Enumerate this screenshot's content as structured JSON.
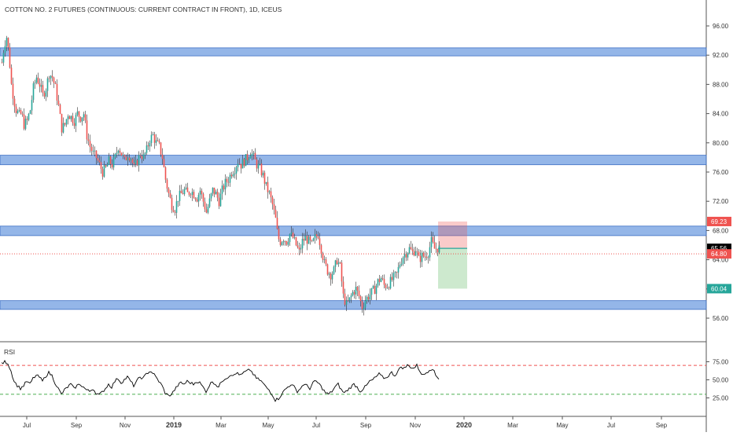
{
  "chart_data": {
    "type": "candlestick",
    "title": "COTTON NO. 2 FUTURES (CONTINUOUS: CURRENT CONTRACT IN FRONT), 1D, ICEUS",
    "price_axis": {
      "ticks": [
        "96.00",
        "92.00",
        "88.00",
        "84.00",
        "80.00",
        "76.00",
        "72.00",
        "68.00",
        "64.00",
        "60.00",
        "56.00"
      ],
      "range": [
        53.5,
        98.5
      ]
    },
    "time_axis": {
      "labels": [
        "Jul",
        "Sep",
        "Nov",
        "2019",
        "Mar",
        "May",
        "Jul",
        "Sep",
        "Nov",
        "2020",
        "Mar",
        "May",
        "Jul",
        "Sep"
      ],
      "bold": [
        "2019",
        "2020"
      ]
    },
    "price_series": [
      {
        "t": 0,
        "p": 91.0
      },
      {
        "t": 3,
        "p": 93.5
      },
      {
        "t": 6,
        "p": 94.5
      },
      {
        "t": 9,
        "p": 92.0
      },
      {
        "t": 12,
        "p": 88.0
      },
      {
        "t": 15,
        "p": 86.0
      },
      {
        "t": 18,
        "p": 84.5
      },
      {
        "t": 22,
        "p": 83.8
      },
      {
        "t": 25,
        "p": 84.0
      },
      {
        "t": 28,
        "p": 82.5
      },
      {
        "t": 32,
        "p": 83.0
      },
      {
        "t": 36,
        "p": 84.5
      },
      {
        "t": 40,
        "p": 87.5
      },
      {
        "t": 44,
        "p": 89.0
      },
      {
        "t": 48,
        "p": 88.0
      },
      {
        "t": 52,
        "p": 86.5
      },
      {
        "t": 56,
        "p": 87.5
      },
      {
        "t": 60,
        "p": 89.5
      },
      {
        "t": 64,
        "p": 89.0
      },
      {
        "t": 68,
        "p": 87.5
      },
      {
        "t": 72,
        "p": 85.0
      },
      {
        "t": 76,
        "p": 82.0
      },
      {
        "t": 80,
        "p": 82.5
      },
      {
        "t": 84,
        "p": 84.0
      },
      {
        "t": 88,
        "p": 83.5
      },
      {
        "t": 92,
        "p": 83.0
      },
      {
        "t": 96,
        "p": 84.0
      },
      {
        "t": 100,
        "p": 83.5
      },
      {
        "t": 104,
        "p": 84.0
      },
      {
        "t": 108,
        "p": 81.0
      },
      {
        "t": 112,
        "p": 79.5
      },
      {
        "t": 116,
        "p": 78.5
      },
      {
        "t": 120,
        "p": 78.0
      },
      {
        "t": 124,
        "p": 77.0
      },
      {
        "t": 128,
        "p": 76.0
      },
      {
        "t": 132,
        "p": 76.5
      },
      {
        "t": 136,
        "p": 77.5
      },
      {
        "t": 140,
        "p": 77.0
      },
      {
        "t": 144,
        "p": 78.0
      },
      {
        "t": 148,
        "p": 79.5
      },
      {
        "t": 152,
        "p": 78.5
      },
      {
        "t": 156,
        "p": 77.5
      },
      {
        "t": 160,
        "p": 78.5
      },
      {
        "t": 164,
        "p": 78.0
      },
      {
        "t": 168,
        "p": 76.5
      },
      {
        "t": 172,
        "p": 77.5
      },
      {
        "t": 176,
        "p": 78.5
      },
      {
        "t": 180,
        "p": 78.0
      },
      {
        "t": 184,
        "p": 79.0
      },
      {
        "t": 188,
        "p": 80.5
      },
      {
        "t": 192,
        "p": 81.0
      },
      {
        "t": 196,
        "p": 80.0
      },
      {
        "t": 200,
        "p": 79.5
      },
      {
        "t": 204,
        "p": 78.0
      },
      {
        "t": 208,
        "p": 75.0
      },
      {
        "t": 212,
        "p": 73.0
      },
      {
        "t": 216,
        "p": 71.5
      },
      {
        "t": 220,
        "p": 71.0
      },
      {
        "t": 224,
        "p": 72.5
      },
      {
        "t": 228,
        "p": 73.0
      },
      {
        "t": 232,
        "p": 73.5
      },
      {
        "t": 236,
        "p": 73.0
      },
      {
        "t": 240,
        "p": 73.5
      },
      {
        "t": 244,
        "p": 73.0
      },
      {
        "t": 248,
        "p": 72.5
      },
      {
        "t": 252,
        "p": 73.5
      },
      {
        "t": 256,
        "p": 72.0
      },
      {
        "t": 260,
        "p": 70.5
      },
      {
        "t": 264,
        "p": 72.0
      },
      {
        "t": 268,
        "p": 73.5
      },
      {
        "t": 272,
        "p": 73.0
      },
      {
        "t": 276,
        "p": 72.0
      },
      {
        "t": 280,
        "p": 73.5
      },
      {
        "t": 284,
        "p": 74.5
      },
      {
        "t": 288,
        "p": 75.0
      },
      {
        "t": 292,
        "p": 76.0
      },
      {
        "t": 296,
        "p": 76.5
      },
      {
        "t": 300,
        "p": 77.5
      },
      {
        "t": 304,
        "p": 77.0
      },
      {
        "t": 308,
        "p": 77.5
      },
      {
        "t": 312,
        "p": 78.0
      },
      {
        "t": 316,
        "p": 78.8
      },
      {
        "t": 320,
        "p": 78.0
      },
      {
        "t": 324,
        "p": 77.0
      },
      {
        "t": 328,
        "p": 76.5
      },
      {
        "t": 332,
        "p": 75.5
      },
      {
        "t": 336,
        "p": 74.0
      },
      {
        "t": 340,
        "p": 73.0
      },
      {
        "t": 344,
        "p": 71.5
      },
      {
        "t": 348,
        "p": 69.5
      },
      {
        "t": 351,
        "p": 67.0
      },
      {
        "t": 354,
        "p": 66.5
      },
      {
        "t": 358,
        "p": 67.0
      },
      {
        "t": 362,
        "p": 66.5
      },
      {
        "t": 366,
        "p": 67.5
      },
      {
        "t": 370,
        "p": 67.0
      },
      {
        "t": 374,
        "p": 66.0
      },
      {
        "t": 378,
        "p": 65.0
      },
      {
        "t": 382,
        "p": 66.5
      },
      {
        "t": 386,
        "p": 67.0
      },
      {
        "t": 390,
        "p": 66.5
      },
      {
        "t": 394,
        "p": 66.0
      },
      {
        "t": 398,
        "p": 67.0
      },
      {
        "t": 402,
        "p": 67.5
      },
      {
        "t": 406,
        "p": 65.5
      },
      {
        "t": 410,
        "p": 63.5
      },
      {
        "t": 414,
        "p": 62.5
      },
      {
        "t": 418,
        "p": 62.0
      },
      {
        "t": 422,
        "p": 62.5
      },
      {
        "t": 426,
        "p": 64.0
      },
      {
        "t": 430,
        "p": 63.0
      },
      {
        "t": 434,
        "p": 59.0
      },
      {
        "t": 438,
        "p": 57.8
      },
      {
        "t": 442,
        "p": 58.5
      },
      {
        "t": 446,
        "p": 59.5
      },
      {
        "t": 450,
        "p": 60.0
      },
      {
        "t": 454,
        "p": 59.0
      },
      {
        "t": 458,
        "p": 57.5
      },
      {
        "t": 462,
        "p": 58.5
      },
      {
        "t": 466,
        "p": 59.0
      },
      {
        "t": 470,
        "p": 59.5
      },
      {
        "t": 474,
        "p": 60.0
      },
      {
        "t": 478,
        "p": 61.0
      },
      {
        "t": 482,
        "p": 61.5
      },
      {
        "t": 486,
        "p": 60.5
      },
      {
        "t": 490,
        "p": 60.5
      },
      {
        "t": 494,
        "p": 61.0
      },
      {
        "t": 498,
        "p": 61.5
      },
      {
        "t": 502,
        "p": 62.0
      },
      {
        "t": 506,
        "p": 63.5
      },
      {
        "t": 510,
        "p": 64.5
      },
      {
        "t": 514,
        "p": 65.0
      },
      {
        "t": 518,
        "p": 65.5
      },
      {
        "t": 522,
        "p": 65.0
      },
      {
        "t": 526,
        "p": 65.5
      },
      {
        "t": 530,
        "p": 64.0
      },
      {
        "t": 534,
        "p": 64.5
      },
      {
        "t": 538,
        "p": 64.5
      },
      {
        "t": 542,
        "p": 65.0
      },
      {
        "t": 546,
        "p": 66.5
      },
      {
        "t": 550,
        "p": 65.5
      },
      {
        "t": 554,
        "p": 65.6
      },
      {
        "t": 557,
        "p": 65.56
      }
    ],
    "rsi_series": [
      {
        "t": 0,
        "v": 72
      },
      {
        "t": 4,
        "v": 75
      },
      {
        "t": 8,
        "v": 73
      },
      {
        "t": 12,
        "v": 62
      },
      {
        "t": 16,
        "v": 48
      },
      {
        "t": 20,
        "v": 42
      },
      {
        "t": 24,
        "v": 38
      },
      {
        "t": 28,
        "v": 42
      },
      {
        "t": 32,
        "v": 48
      },
      {
        "t": 36,
        "v": 44
      },
      {
        "t": 40,
        "v": 52
      },
      {
        "t": 44,
        "v": 56
      },
      {
        "t": 48,
        "v": 54
      },
      {
        "t": 52,
        "v": 48
      },
      {
        "t": 56,
        "v": 55
      },
      {
        "t": 60,
        "v": 60
      },
      {
        "t": 64,
        "v": 56
      },
      {
        "t": 68,
        "v": 46
      },
      {
        "t": 72,
        "v": 38
      },
      {
        "t": 76,
        "v": 30
      },
      {
        "t": 80,
        "v": 36
      },
      {
        "t": 84,
        "v": 40
      },
      {
        "t": 88,
        "v": 44
      },
      {
        "t": 92,
        "v": 38
      },
      {
        "t": 96,
        "v": 42
      },
      {
        "t": 100,
        "v": 44
      },
      {
        "t": 104,
        "v": 40
      },
      {
        "t": 108,
        "v": 36
      },
      {
        "t": 112,
        "v": 34
      },
      {
        "t": 116,
        "v": 38
      },
      {
        "t": 120,
        "v": 32
      },
      {
        "t": 124,
        "v": 29
      },
      {
        "t": 128,
        "v": 33
      },
      {
        "t": 132,
        "v": 38
      },
      {
        "t": 136,
        "v": 44
      },
      {
        "t": 140,
        "v": 40
      },
      {
        "t": 144,
        "v": 48
      },
      {
        "t": 148,
        "v": 52
      },
      {
        "t": 152,
        "v": 46
      },
      {
        "t": 156,
        "v": 50
      },
      {
        "t": 160,
        "v": 54
      },
      {
        "t": 164,
        "v": 48
      },
      {
        "t": 168,
        "v": 42
      },
      {
        "t": 172,
        "v": 48
      },
      {
        "t": 176,
        "v": 54
      },
      {
        "t": 180,
        "v": 52
      },
      {
        "t": 184,
        "v": 58
      },
      {
        "t": 188,
        "v": 62
      },
      {
        "t": 192,
        "v": 60
      },
      {
        "t": 196,
        "v": 54
      },
      {
        "t": 200,
        "v": 48
      },
      {
        "t": 204,
        "v": 42
      },
      {
        "t": 208,
        "v": 32
      },
      {
        "t": 212,
        "v": 28
      },
      {
        "t": 216,
        "v": 30
      },
      {
        "t": 220,
        "v": 36
      },
      {
        "t": 224,
        "v": 42
      },
      {
        "t": 228,
        "v": 46
      },
      {
        "t": 232,
        "v": 44
      },
      {
        "t": 236,
        "v": 48
      },
      {
        "t": 240,
        "v": 46
      },
      {
        "t": 244,
        "v": 44
      },
      {
        "t": 248,
        "v": 48
      },
      {
        "t": 252,
        "v": 46
      },
      {
        "t": 256,
        "v": 40
      },
      {
        "t": 260,
        "v": 34
      },
      {
        "t": 264,
        "v": 42
      },
      {
        "t": 268,
        "v": 48
      },
      {
        "t": 272,
        "v": 44
      },
      {
        "t": 276,
        "v": 40
      },
      {
        "t": 280,
        "v": 48
      },
      {
        "t": 284,
        "v": 52
      },
      {
        "t": 288,
        "v": 54
      },
      {
        "t": 292,
        "v": 58
      },
      {
        "t": 296,
        "v": 56
      },
      {
        "t": 300,
        "v": 60
      },
      {
        "t": 304,
        "v": 56
      },
      {
        "t": 308,
        "v": 60
      },
      {
        "t": 312,
        "v": 62
      },
      {
        "t": 316,
        "v": 64
      },
      {
        "t": 320,
        "v": 58
      },
      {
        "t": 324,
        "v": 52
      },
      {
        "t": 328,
        "v": 50
      },
      {
        "t": 332,
        "v": 46
      },
      {
        "t": 336,
        "v": 40
      },
      {
        "t": 340,
        "v": 36
      },
      {
        "t": 344,
        "v": 30
      },
      {
        "t": 348,
        "v": 22
      },
      {
        "t": 352,
        "v": 24
      },
      {
        "t": 356,
        "v": 30
      },
      {
        "t": 360,
        "v": 36
      },
      {
        "t": 364,
        "v": 40
      },
      {
        "t": 368,
        "v": 44
      },
      {
        "t": 372,
        "v": 40
      },
      {
        "t": 376,
        "v": 34
      },
      {
        "t": 380,
        "v": 38
      },
      {
        "t": 384,
        "v": 44
      },
      {
        "t": 388,
        "v": 42
      },
      {
        "t": 392,
        "v": 38
      },
      {
        "t": 396,
        "v": 46
      },
      {
        "t": 400,
        "v": 48
      },
      {
        "t": 404,
        "v": 44
      },
      {
        "t": 408,
        "v": 38
      },
      {
        "t": 412,
        "v": 32
      },
      {
        "t": 416,
        "v": 30
      },
      {
        "t": 420,
        "v": 34
      },
      {
        "t": 424,
        "v": 40
      },
      {
        "t": 428,
        "v": 44
      },
      {
        "t": 432,
        "v": 36
      },
      {
        "t": 436,
        "v": 32
      },
      {
        "t": 440,
        "v": 36
      },
      {
        "t": 444,
        "v": 40
      },
      {
        "t": 448,
        "v": 44
      },
      {
        "t": 452,
        "v": 40
      },
      {
        "t": 456,
        "v": 34
      },
      {
        "t": 460,
        "v": 38
      },
      {
        "t": 464,
        "v": 42
      },
      {
        "t": 468,
        "v": 48
      },
      {
        "t": 472,
        "v": 50
      },
      {
        "t": 476,
        "v": 54
      },
      {
        "t": 480,
        "v": 58
      },
      {
        "t": 484,
        "v": 54
      },
      {
        "t": 488,
        "v": 52
      },
      {
        "t": 492,
        "v": 56
      },
      {
        "t": 496,
        "v": 60
      },
      {
        "t": 500,
        "v": 56
      },
      {
        "t": 504,
        "v": 62
      },
      {
        "t": 508,
        "v": 68
      },
      {
        "t": 512,
        "v": 66
      },
      {
        "t": 516,
        "v": 70
      },
      {
        "t": 520,
        "v": 68
      },
      {
        "t": 524,
        "v": 66
      },
      {
        "t": 528,
        "v": 70
      },
      {
        "t": 532,
        "v": 62
      },
      {
        "t": 536,
        "v": 56
      },
      {
        "t": 540,
        "v": 60
      },
      {
        "t": 544,
        "v": 64
      },
      {
        "t": 548,
        "v": 66
      },
      {
        "t": 552,
        "v": 56
      },
      {
        "t": 556,
        "v": 52
      }
    ],
    "horizontal_zones": [
      {
        "low": 91.9,
        "high": 93.0
      },
      {
        "low": 77.0,
        "high": 78.3
      },
      {
        "low": 67.3,
        "high": 68.6
      },
      {
        "low": 57.2,
        "high": 58.4
      }
    ],
    "dotted_line": 64.8,
    "position": {
      "entry": 65.56,
      "stop": 69.23,
      "target": 60.04
    },
    "price_labels": [
      {
        "text": "69.23",
        "value": 69.23,
        "color": "#ef5350"
      },
      {
        "text": "65.56",
        "value": 65.56,
        "color": "#000000"
      },
      {
        "text": "64.80",
        "value": 64.8,
        "color": "#ef5350"
      },
      {
        "text": "60.04",
        "value": 60.04,
        "color": "#26a69a"
      }
    ],
    "rsi": {
      "label": "RSI",
      "ticks": [
        "75.00",
        "50.00",
        "25.00"
      ],
      "upper": 70,
      "lower": 30
    },
    "colors": {
      "up": "#26a69a",
      "down": "#ef5350",
      "zone": "#5b8fdb",
      "rsi_line": "#000000",
      "label_red": "#ef5350",
      "label_green": "#26a69a"
    }
  }
}
